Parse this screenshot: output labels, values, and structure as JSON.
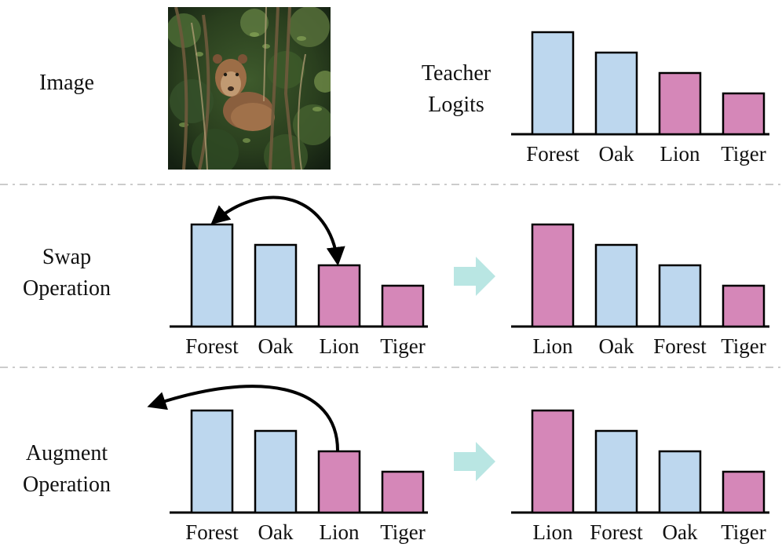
{
  "colors": {
    "blue_bar": "#bdd7ee",
    "pink_bar": "#d587b8",
    "arrow_fill": "#b9e6e3",
    "divider": "#cccccc"
  },
  "image_row": {
    "label": "Image",
    "teacher_label_line1": "Teacher",
    "teacher_label_line2": "Logits",
    "photo_icon": "lioness-in-forest-photo",
    "teacher_chart": {
      "categories": [
        "Forest",
        "Oak",
        "Lion",
        "Tiger"
      ],
      "values": [
        5,
        4,
        3,
        2
      ],
      "colors": [
        "blue",
        "blue",
        "pink",
        "pink"
      ]
    }
  },
  "swap_row": {
    "label_line1": "Swap",
    "label_line2": "Operation",
    "arrow_icon": "arrow-right-icon",
    "before_chart": {
      "categories": [
        "Forest",
        "Oak",
        "Lion",
        "Tiger"
      ],
      "values": [
        5,
        4,
        3,
        2
      ],
      "colors": [
        "blue",
        "blue",
        "pink",
        "pink"
      ]
    },
    "after_chart": {
      "categories": [
        "Lion",
        "Oak",
        "Forest",
        "Tiger"
      ],
      "values": [
        5,
        4,
        3,
        2
      ],
      "colors": [
        "pink",
        "blue",
        "blue",
        "pink"
      ]
    }
  },
  "augment_row": {
    "label_line1": "Augment",
    "label_line2": "Operation",
    "arrow_icon": "arrow-right-icon",
    "before_chart": {
      "categories": [
        "Forest",
        "Oak",
        "Lion",
        "Tiger"
      ],
      "values": [
        5,
        4,
        3,
        2
      ],
      "colors": [
        "blue",
        "blue",
        "pink",
        "pink"
      ]
    },
    "after_chart": {
      "categories": [
        "Lion",
        "Forest",
        "Oak",
        "Tiger"
      ],
      "values": [
        5,
        4,
        3,
        2
      ],
      "colors": [
        "pink",
        "blue",
        "blue",
        "pink"
      ]
    }
  }
}
